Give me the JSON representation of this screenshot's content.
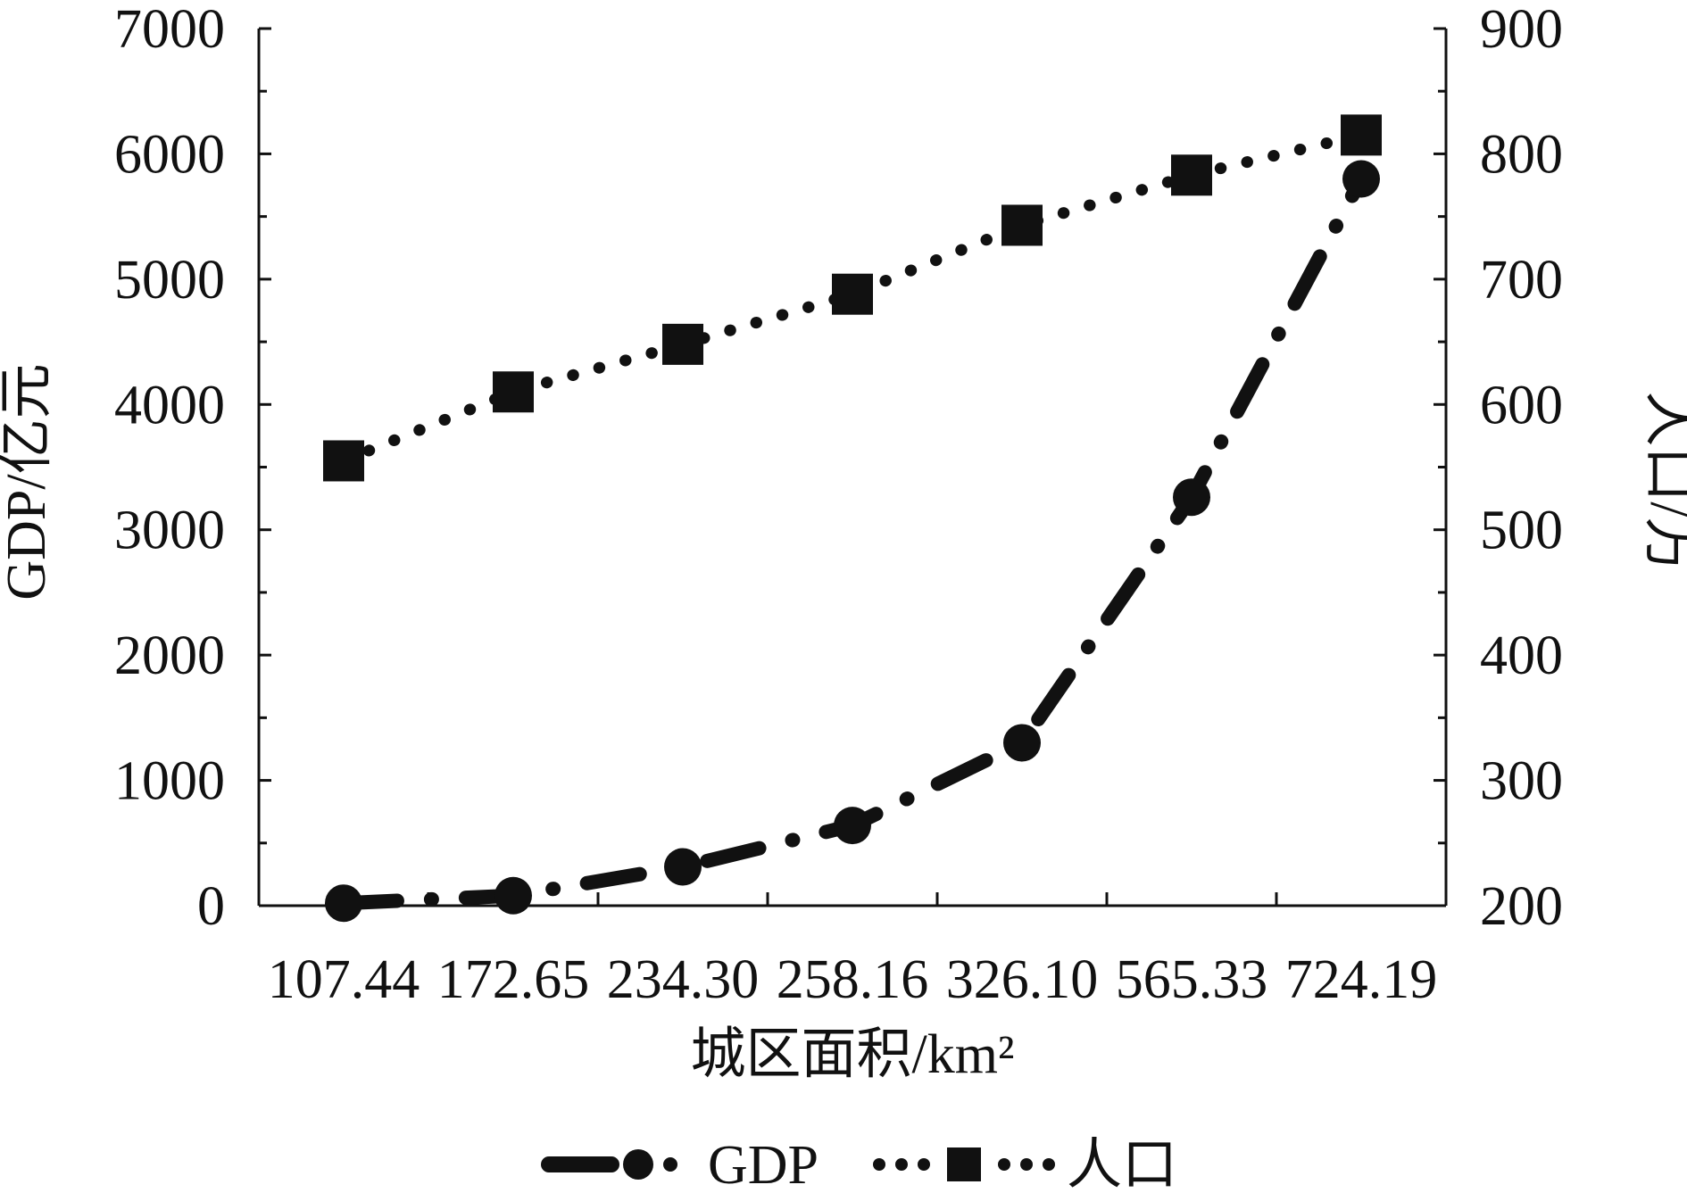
{
  "chart_data": {
    "type": "line",
    "categories": [
      "107.44",
      "172.65",
      "234.30",
      "258.16",
      "326.10",
      "565.33",
      "724.19"
    ],
    "xlabel": "城区面积/km²",
    "ylabel_left": "GDP/亿元",
    "ylabel_right": "人口/万",
    "ylim_left": [
      0,
      7000
    ],
    "ylim_right": [
      200,
      900
    ],
    "yticks_left": [
      "0",
      "1000",
      "2000",
      "3000",
      "4000",
      "5000",
      "6000",
      "7000"
    ],
    "yticks_right": [
      "200",
      "300",
      "400",
      "500",
      "600",
      "700",
      "800",
      "900"
    ],
    "grid": false,
    "legend_position": "bottom",
    "series": [
      {
        "name": "GDP",
        "axis": "left",
        "marker": "circle",
        "line_style": "dash-dot",
        "values": [
          20,
          80,
          310,
          640,
          1300,
          3260,
          5800
        ]
      },
      {
        "name": "人口",
        "axis": "right",
        "marker": "square",
        "line_style": "dotted",
        "values": [
          555,
          610,
          648,
          688,
          743,
          783,
          815
        ]
      }
    ]
  }
}
